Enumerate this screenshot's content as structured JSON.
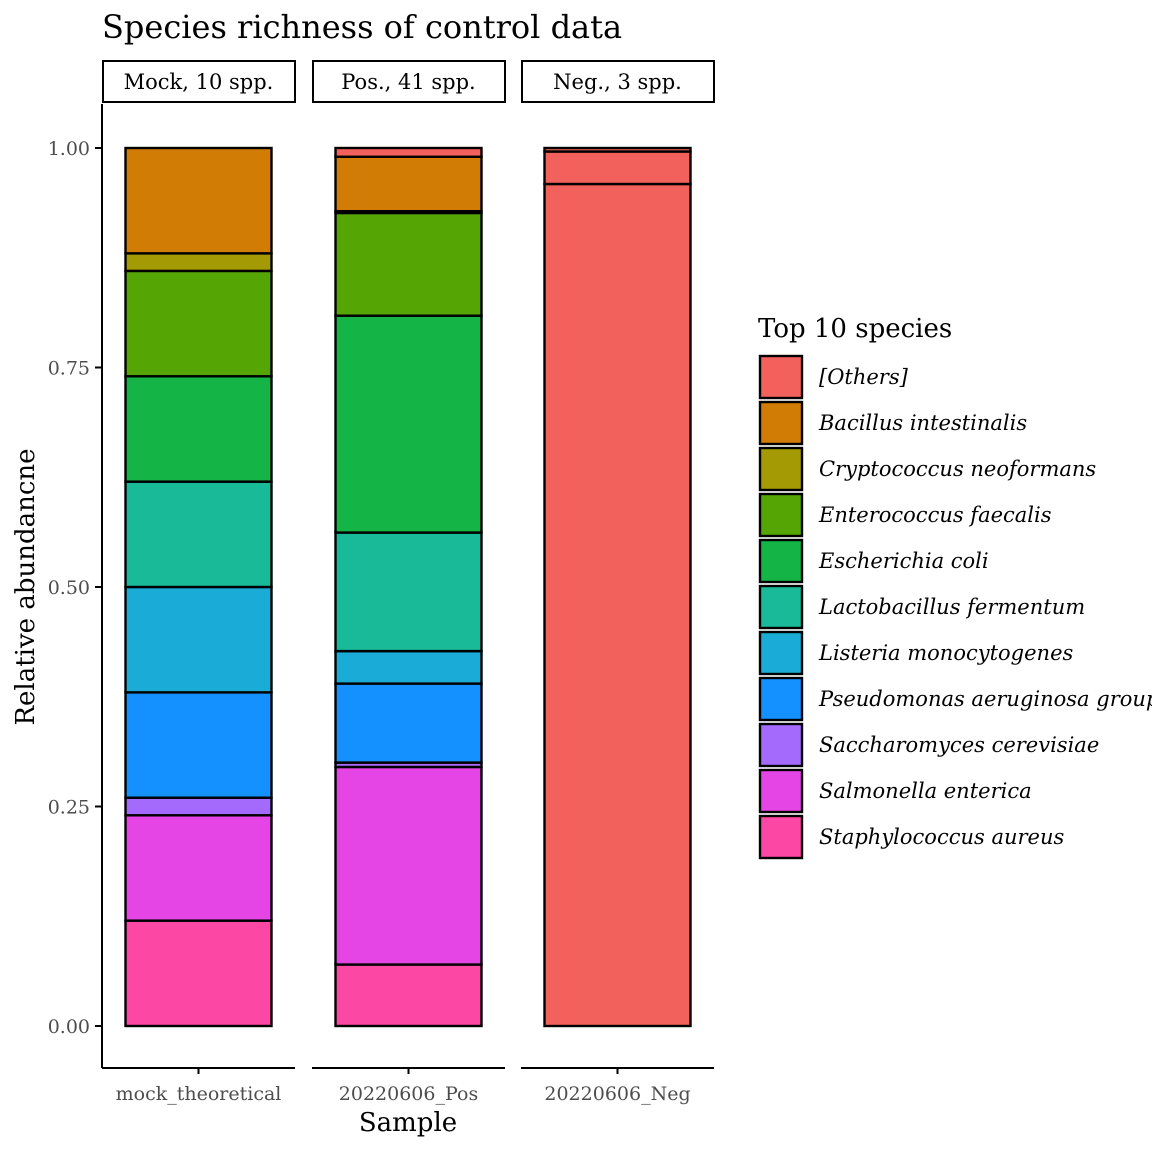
{
  "chart_data": {
    "type": "bar",
    "stacked": true,
    "title": "Species richness of control data",
    "xlabel": "Sample",
    "ylabel": "Relative abundancne",
    "ylim": [
      0,
      1
    ],
    "y_ticks": [
      "0.00",
      "0.25",
      "0.50",
      "0.75",
      "1.00"
    ],
    "legend": {
      "title": "Top 10 species",
      "placement": "right"
    },
    "species": [
      {
        "name": "[Others]",
        "color": "#F2615C"
      },
      {
        "name": "Bacillus intestinalis",
        "color": "#D17C04"
      },
      {
        "name": "Cryptococcus neoformans",
        "color": "#A39A04"
      },
      {
        "name": "Enterococcus faecalis",
        "color": "#55A604"
      },
      {
        "name": "Escherichia coli",
        "color": "#15B446"
      },
      {
        "name": "Lactobacillus fermentum",
        "color": "#19BA97"
      },
      {
        "name": "Listeria monocytogenes",
        "color": "#1AACD6"
      },
      {
        "name": "Pseudomonas aeruginosa group",
        "color": "#1490FF"
      },
      {
        "name": "Saccharomyces cerevisiae",
        "color": "#A46AFC"
      },
      {
        "name": "Salmonella enterica",
        "color": "#E645E6"
      },
      {
        "name": "Staphylococcus aureus",
        "color": "#FC47A4"
      }
    ],
    "panels": [
      {
        "strip": "Mock, 10 spp.",
        "sample": "mock_theoretical",
        "segments": [
          {
            "species": "Staphylococcus aureus",
            "value": 0.12
          },
          {
            "species": "Salmonella enterica",
            "value": 0.12
          },
          {
            "species": "Saccharomyces cerevisiae",
            "value": 0.02
          },
          {
            "species": "Pseudomonas aeruginosa group",
            "value": 0.12
          },
          {
            "species": "Listeria monocytogenes",
            "value": 0.12
          },
          {
            "species": "Lactobacillus fermentum",
            "value": 0.12
          },
          {
            "species": "Escherichia coli",
            "value": 0.12
          },
          {
            "species": "Enterococcus faecalis",
            "value": 0.12
          },
          {
            "species": "Cryptococcus neoformans",
            "value": 0.02
          },
          {
            "species": "Bacillus intestinalis",
            "value": 0.12
          }
        ]
      },
      {
        "strip": "Pos., 41 spp.",
        "sample": "20220606_Pos",
        "segments": [
          {
            "species": "Staphylococcus aureus",
            "value": 0.07
          },
          {
            "species": "Salmonella enterica",
            "value": 0.225
          },
          {
            "species": "Saccharomyces cerevisiae",
            "value": 0.005
          },
          {
            "species": "Pseudomonas aeruginosa group",
            "value": 0.09
          },
          {
            "species": "Listeria monocytogenes",
            "value": 0.037
          },
          {
            "species": "Lactobacillus fermentum",
            "value": 0.135
          },
          {
            "species": "Escherichia coli",
            "value": 0.247
          },
          {
            "species": "Enterococcus faecalis",
            "value": 0.117
          },
          {
            "species": "Cryptococcus neoformans",
            "value": 0.002
          },
          {
            "species": "Bacillus intestinalis",
            "value": 0.062
          },
          {
            "species": "[Others]",
            "value": 0.01
          }
        ]
      },
      {
        "strip": "Neg., 3 spp.",
        "sample": "20220606_Neg",
        "segments": [
          {
            "species": "[Others]",
            "value": 0.959
          },
          {
            "species": "[Others]",
            "value": 0.037
          },
          {
            "species": "[Others]",
            "value": 0.004
          }
        ]
      }
    ]
  }
}
